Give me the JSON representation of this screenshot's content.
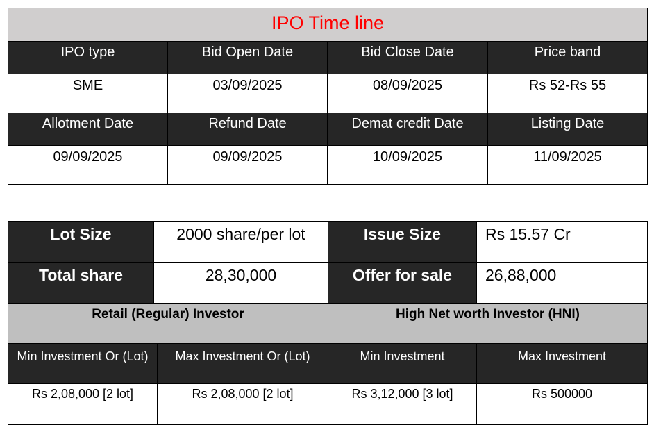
{
  "timeline": {
    "title": "IPO Time line",
    "headers_row1": [
      "IPO type",
      "Bid Open Date",
      "Bid Close Date",
      "Price band"
    ],
    "values_row1": [
      "SME",
      "03/09/2025",
      "08/09/2025",
      "Rs 52-Rs 55"
    ],
    "headers_row2": [
      "Allotment Date",
      "Refund Date",
      "Demat credit Date",
      "Listing Date"
    ],
    "values_row2": [
      "09/09/2025",
      "09/09/2025",
      "10/09/2025",
      "11/09/2025"
    ]
  },
  "details": {
    "lot_size_label": "Lot Size",
    "lot_size_value": "2000 share/per lot",
    "issue_size_label": "Issue Size",
    "issue_size_value": "Rs 15.57 Cr",
    "total_share_label": "Total share",
    "total_share_value": "28,30,000",
    "offer_for_sale_label": "Offer for sale",
    "offer_for_sale_value": "26,88,000",
    "retail_heading": "Retail (Regular) Investor",
    "hni_heading": "High Net worth Investor (HNI)",
    "investment_headers": [
      "Min Investment Or (Lot)",
      "Max Investment Or (Lot)",
      "Min Investment",
      "Max Investment"
    ],
    "investment_values": [
      "Rs 2,08,000 [2 lot]",
      "Rs 2,08,000 [2 lot]",
      "Rs 3,12,000 [3 lot]",
      "Rs 500000"
    ]
  },
  "colors": {
    "title_text": "#ff0000",
    "title_bg": "#d0cece",
    "dark_header_bg": "#262626",
    "grey_heading_bg": "#bfbfbf"
  }
}
